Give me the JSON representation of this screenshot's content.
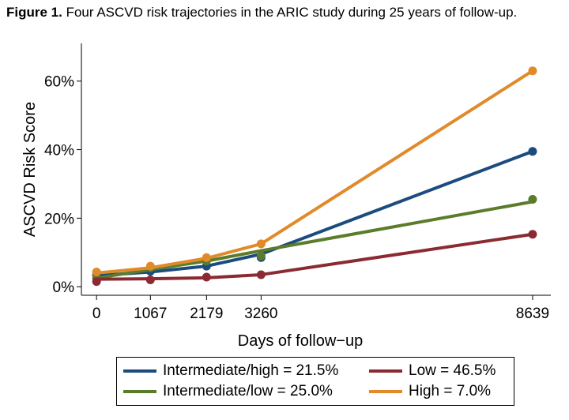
{
  "caption": {
    "label": "Figure 1.",
    "text": " Four ASCVD risk trajectories in the ARIC study during 25 years of follow-up."
  },
  "chart_data": {
    "type": "line",
    "x": [
      0,
      1067,
      2179,
      3260,
      8639
    ],
    "xlabel": "Days of follow−up",
    "ylabel": "ASCVD Risk Score",
    "x_tick_labels": [
      "0",
      "1067",
      "2179",
      "3260",
      "8639"
    ],
    "y_ticks": [
      0,
      20,
      40,
      60
    ],
    "y_tick_labels": [
      "0%",
      "20%",
      "40%",
      "60%"
    ],
    "xlim": [
      -300,
      9000
    ],
    "ylim": [
      -2.5,
      71
    ],
    "grid": false,
    "legend_position": "bottom",
    "series": [
      {
        "name": "Intermediate/high = 21.5%",
        "color": "#1a4c7e",
        "points": [
          3.5,
          4.5,
          6.0,
          8.5,
          39.5
        ],
        "fit": [
          3.2,
          4.3,
          6.0,
          9.5,
          39.5
        ]
      },
      {
        "name": "Intermediate/low = 25.0%",
        "color": "#5b7c2a",
        "points": [
          2.5,
          5.5,
          7.5,
          9.0,
          25.5
        ],
        "fit": [
          2.5,
          5.0,
          7.5,
          10.5,
          24.8
        ]
      },
      {
        "name": "Low = 46.5%",
        "color": "#8c2a33",
        "points": [
          1.5,
          2.0,
          2.8,
          3.5,
          15.3
        ],
        "fit": [
          2.2,
          2.3,
          2.6,
          3.5,
          15.3
        ]
      },
      {
        "name": "High = 7.0%",
        "color": "#e08a2a",
        "points": [
          4.3,
          6.0,
          8.5,
          12.5,
          63.0
        ],
        "fit": [
          4.0,
          5.5,
          8.3,
          12.5,
          63.0
        ]
      }
    ]
  }
}
